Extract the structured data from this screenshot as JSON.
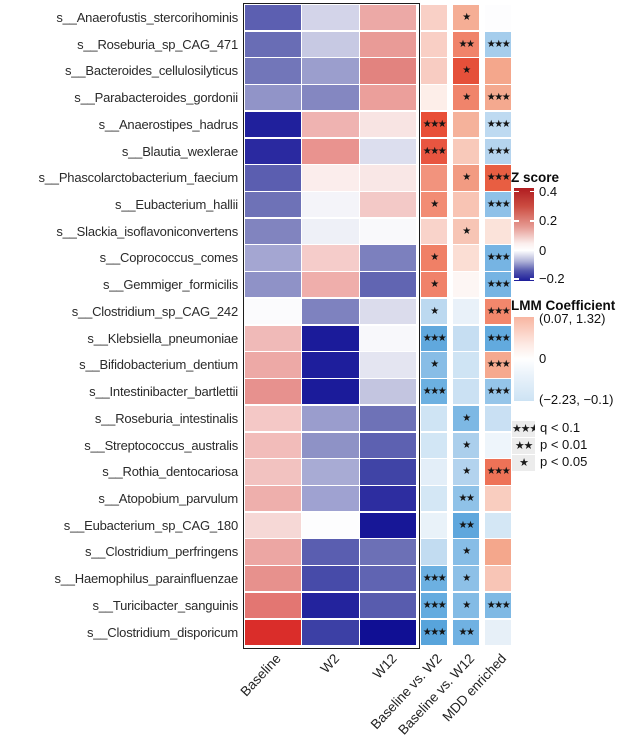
{
  "chart_data": {
    "type": "heatmap",
    "title": "",
    "columns": [
      "Baseline",
      "W2",
      "W12",
      "Baseline vs. W2",
      "Baseline vs. W12",
      "MDD enriched"
    ],
    "z_columns": [
      "Baseline",
      "W2",
      "W12"
    ],
    "lmm_columns": [
      "Baseline vs. W2",
      "Baseline vs. W12",
      "MDD enriched"
    ],
    "rows": [
      {
        "species": "s__Anaerofustis_stercorihominis",
        "z_values": [
          -0.13,
          -0.04,
          0.12
        ],
        "z_colors": [
          "#5c5fb1",
          "#d3d4e9",
          "#eca9a6"
        ],
        "lmm": [
          {
            "color": "#f9d0c6",
            "stars": ""
          },
          {
            "color": "#f5ae95",
            "stars": "*"
          },
          {
            "color": "#fdfdfe",
            "stars": ""
          }
        ]
      },
      {
        "species": "s__Roseburia_sp_CAG_471",
        "z_values": [
          -0.12,
          -0.05,
          0.14
        ],
        "z_colors": [
          "#696db5",
          "#c7c9e3",
          "#e99b97"
        ],
        "lmm": [
          {
            "color": "#f9cfc5",
            "stars": ""
          },
          {
            "color": "#f0836a",
            "stars": "**"
          },
          {
            "color": "#a5cdec",
            "stars": "***"
          }
        ]
      },
      {
        "species": "s__Bacteroides_cellulosilyticus",
        "z_values": [
          -0.11,
          -0.08,
          0.17
        ],
        "z_colors": [
          "#7276b9",
          "#9b9ecd",
          "#e2837f"
        ],
        "lmm": [
          {
            "color": "#f8ccc2",
            "stars": ""
          },
          {
            "color": "#e5503a",
            "stars": "*"
          },
          {
            "color": "#f4a78c",
            "stars": ""
          }
        ]
      },
      {
        "species": "s__Parabacteroides_gordonii",
        "z_values": [
          -0.07,
          -0.09,
          0.13
        ],
        "z_colors": [
          "#9194c8",
          "#8487c1",
          "#eb9f9b"
        ],
        "lmm": [
          {
            "color": "#fdeee9",
            "stars": ""
          },
          {
            "color": "#f0846b",
            "stars": "*"
          },
          {
            "color": "#f4a98f",
            "stars": "***"
          }
        ]
      },
      {
        "species": "s__Anaerostipes_hadrus",
        "z_values": [
          -0.2,
          0.09,
          0.03
        ],
        "z_colors": [
          "#20209c",
          "#efb3b1",
          "#f8e4e3"
        ],
        "lmm": [
          {
            "color": "#e84f38",
            "stars": "***"
          },
          {
            "color": "#f5b29b",
            "stars": ""
          },
          {
            "color": "#bedaf1",
            "stars": "***"
          }
        ]
      },
      {
        "species": "s__Blautia_wexlerae",
        "z_values": [
          -0.19,
          0.15,
          -0.03
        ],
        "z_colors": [
          "#2a29a0",
          "#e9938f",
          "#dcdeee"
        ],
        "lmm": [
          {
            "color": "#e85540",
            "stars": "***"
          },
          {
            "color": "#f8c9ba",
            "stars": ""
          },
          {
            "color": "#b5d4ee",
            "stars": "***"
          }
        ]
      },
      {
        "species": "s__Phascolarctobacterium_faecium",
        "z_values": [
          -0.13,
          0.02,
          0.03
        ],
        "z_colors": [
          "#5b5eb0",
          "#fbedec",
          "#f9e7e6"
        ],
        "lmm": [
          {
            "color": "#f2937d",
            "stars": ""
          },
          {
            "color": "#f29b82",
            "stars": "*"
          },
          {
            "color": "#e85e42",
            "stars": "***"
          }
        ]
      },
      {
        "species": "s__Eubacterium_hallii",
        "z_values": [
          -0.11,
          0.01,
          0.07
        ],
        "z_colors": [
          "#6e72b7",
          "#f4f4f9",
          "#f3c9c7"
        ],
        "lmm": [
          {
            "color": "#f28c74",
            "stars": "*"
          },
          {
            "color": "#f8c4b4",
            "stars": ""
          },
          {
            "color": "#8fc1e8",
            "stars": "***"
          }
        ]
      },
      {
        "species": "s__Slackia_isoflavoniconvertens",
        "z_values": [
          -0.09,
          -0.01,
          0.0
        ],
        "z_colors": [
          "#8184bf",
          "#eef0f7",
          "#f9f9fb"
        ],
        "lmm": [
          {
            "color": "#f9d3ca",
            "stars": ""
          },
          {
            "color": "#f7c5b5",
            "stars": "*"
          },
          {
            "color": "#fbe3da",
            "stars": ""
          }
        ]
      },
      {
        "species": "s__Coprococcus_comes",
        "z_values": [
          -0.06,
          0.07,
          -0.1
        ],
        "z_colors": [
          "#a4a6d2",
          "#f5ccca",
          "#7c80be"
        ],
        "lmm": [
          {
            "color": "#f08066",
            "stars": "*"
          },
          {
            "color": "#fbded4",
            "stars": ""
          },
          {
            "color": "#76b4e3",
            "stars": "***"
          }
        ]
      },
      {
        "species": "s__Gemmiger_formicilis",
        "z_values": [
          -0.07,
          0.11,
          -0.13
        ],
        "z_colors": [
          "#8f92c7",
          "#efaeab",
          "#6165b2"
        ],
        "lmm": [
          {
            "color": "#f0826a",
            "stars": "*"
          },
          {
            "color": "#fdf6f4",
            "stars": ""
          },
          {
            "color": "#76b4e3",
            "stars": "***"
          }
        ]
      },
      {
        "species": "s__Clostridium_sp_CAG_242",
        "z_values": [
          0.0,
          -0.1,
          -0.04
        ],
        "z_colors": [
          "#fbfbfd",
          "#7e82bf",
          "#dbdcec"
        ],
        "lmm": [
          {
            "color": "#bcd9f0",
            "stars": "*"
          },
          {
            "color": "#e9f1f9",
            "stars": ""
          },
          {
            "color": "#f2876c",
            "stars": "***"
          }
        ]
      },
      {
        "species": "s__Klebsiella_pneumoniae",
        "z_values": [
          0.09,
          -0.2,
          0.0
        ],
        "z_colors": [
          "#f0bab8",
          "#1b1b9a",
          "#f8f8fb"
        ],
        "lmm": [
          {
            "color": "#60a8dd",
            "stars": "***"
          },
          {
            "color": "#c6def2",
            "stars": ""
          },
          {
            "color": "#62aade",
            "stars": "***"
          }
        ]
      },
      {
        "species": "s__Bifidobacterium_dentium",
        "z_values": [
          0.12,
          -0.2,
          -0.03
        ],
        "z_colors": [
          "#eda9a6",
          "#1e1e9c",
          "#e4e5f1"
        ],
        "lmm": [
          {
            "color": "#88bde6",
            "stars": "*"
          },
          {
            "color": "#cfe4f4",
            "stars": ""
          },
          {
            "color": "#f5a98f",
            "stars": "***"
          }
        ]
      },
      {
        "species": "s__Intestinibacter_bartlettii",
        "z_values": [
          0.16,
          -0.2,
          -0.06
        ],
        "z_colors": [
          "#e7918e",
          "#1b1b9a",
          "#c3c5e0"
        ],
        "lmm": [
          {
            "color": "#6cb0e1",
            "stars": "***"
          },
          {
            "color": "#cbe1f3",
            "stars": ""
          },
          {
            "color": "#95c5e9",
            "stars": "***"
          }
        ]
      },
      {
        "species": "s__Roseburia_intestinalis",
        "z_values": [
          0.07,
          -0.08,
          -0.11
        ],
        "z_colors": [
          "#f4c8c6",
          "#9a9dcd",
          "#6e72b7"
        ],
        "lmm": [
          {
            "color": "#cfe4f4",
            "stars": ""
          },
          {
            "color": "#7db8e4",
            "stars": "*"
          },
          {
            "color": "#c9e0f3",
            "stars": ""
          }
        ]
      },
      {
        "species": "s__Streptococcus_australis",
        "z_values": [
          0.09,
          -0.09,
          -0.13
        ],
        "z_colors": [
          "#f2bcba",
          "#8e92c6",
          "#5d61b1"
        ],
        "lmm": [
          {
            "color": "#d2e6f5",
            "stars": ""
          },
          {
            "color": "#abcfec",
            "stars": "*"
          },
          {
            "color": "#eef5fb",
            "stars": ""
          }
        ]
      },
      {
        "species": "s__Rothia_dentocariosa",
        "z_values": [
          0.08,
          -0.07,
          -0.16
        ],
        "z_colors": [
          "#f2c2c0",
          "#a8abd4",
          "#4044a6"
        ],
        "lmm": [
          {
            "color": "#e3eef8",
            "stars": ""
          },
          {
            "color": "#b3d3ee",
            "stars": "*"
          },
          {
            "color": "#ee7257",
            "stars": "***"
          }
        ]
      },
      {
        "species": "s__Atopobium_parvulum",
        "z_values": [
          0.11,
          -0.08,
          -0.18
        ],
        "z_colors": [
          "#eeafac",
          "#9fa2d1",
          "#2d2da0"
        ],
        "lmm": [
          {
            "color": "#d4e7f5",
            "stars": ""
          },
          {
            "color": "#8fc2e8",
            "stars": "**"
          },
          {
            "color": "#f9cdbf",
            "stars": ""
          }
        ]
      },
      {
        "species": "s__Eubacterium_sp_CAG_180",
        "z_values": [
          0.05,
          0.0,
          -0.2
        ],
        "z_colors": [
          "#f6d8d6",
          "#fdfdfe",
          "#171797"
        ],
        "lmm": [
          {
            "color": "#e9f2f9",
            "stars": ""
          },
          {
            "color": "#5fa7dd",
            "stars": "**"
          },
          {
            "color": "#d4e7f5",
            "stars": ""
          }
        ]
      },
      {
        "species": "s__Clostridium_perfringens",
        "z_values": [
          0.12,
          -0.13,
          -0.12
        ],
        "z_colors": [
          "#eca6a3",
          "#5a5eb0",
          "#6c70b6"
        ],
        "lmm": [
          {
            "color": "#c2dcf1",
            "stars": ""
          },
          {
            "color": "#87bde6",
            "stars": "*"
          },
          {
            "color": "#f4a78c",
            "stars": ""
          }
        ]
      },
      {
        "species": "s__Haemophilus_parainfluenzae",
        "z_values": [
          0.16,
          -0.15,
          -0.13
        ],
        "z_colors": [
          "#e7918d",
          "#474ba9",
          "#6064b2"
        ],
        "lmm": [
          {
            "color": "#6cb0e1",
            "stars": "***"
          },
          {
            "color": "#8dc0e7",
            "stars": "*"
          },
          {
            "color": "#f8c5b6",
            "stars": ""
          }
        ]
      },
      {
        "species": "s__Turicibacter_sanguinis",
        "z_values": [
          0.23,
          -0.19,
          -0.14
        ],
        "z_colors": [
          "#e37672",
          "#23239d",
          "#585cae"
        ],
        "lmm": [
          {
            "color": "#64abdf",
            "stars": "***"
          },
          {
            "color": "#83bbe5",
            "stars": "*"
          },
          {
            "color": "#7fb9e4",
            "stars": "***"
          }
        ]
      },
      {
        "species": "s__Clostridium_disporicum",
        "z_values": [
          0.4,
          -0.16,
          -0.21
        ],
        "z_colors": [
          "#da2d2a",
          "#3c40a5",
          "#100f94"
        ],
        "lmm": [
          {
            "color": "#58a4db",
            "stars": "***"
          },
          {
            "color": "#70b1e2",
            "stars": "**"
          },
          {
            "color": "#e7f0f8",
            "stars": ""
          }
        ]
      }
    ],
    "z_legend": {
      "title": "Z score",
      "tick_labels": [
        "0.4",
        "0.2",
        "0",
        "−0.2"
      ],
      "range": [
        -0.2,
        0.4
      ],
      "gradient": [
        "#b01c20",
        "#cc4d42",
        "#e69b93",
        "#fbefee",
        "#ffffff",
        "#aeb1d7",
        "#5559ae",
        "#1d1d9a"
      ],
      "gradient_stops": [
        0,
        0.2,
        0.42,
        0.6,
        0.67,
        0.79,
        0.89,
        1
      ]
    },
    "lmm_legend": {
      "title": "LMM Coefficient",
      "top_label": "(0.07, 1.32)",
      "mid_label": "0",
      "bottom_label": "(−2.23, −0.1)",
      "gradient": [
        "#f8b5a1",
        "#fde9e3",
        "#ffffff",
        "#e9f2fa",
        "#cde3f4"
      ],
      "gradient_stops": [
        0,
        0.32,
        0.5,
        0.7,
        1
      ]
    },
    "sig_legend": [
      {
        "stars": "***",
        "label": "q < 0.1"
      },
      {
        "stars": "**",
        "label": "p < 0.01"
      },
      {
        "stars": "*",
        "label": "p < 0.05"
      }
    ],
    "layout": {
      "grid": "off",
      "legend_position": "right",
      "x_labels_rotated": true
    }
  }
}
